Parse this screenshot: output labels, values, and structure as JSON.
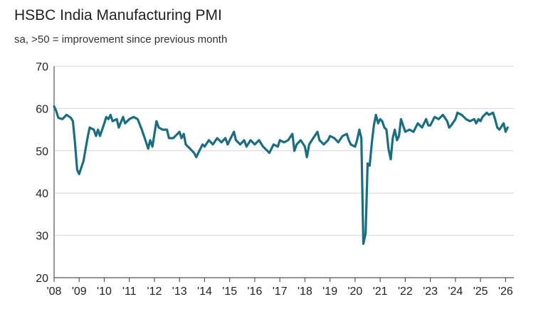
{
  "chart_data": {
    "type": "line",
    "title": "HSBC India Manufacturing PMI",
    "subtitle": "sa, >50 = improvement since previous month",
    "xlabel": "",
    "ylabel": "",
    "ylim": [
      20,
      70
    ],
    "yticks": [
      20,
      30,
      40,
      50,
      60,
      70
    ],
    "xlim": [
      2008.0,
      2026.33
    ],
    "xticks": [
      {
        "value": 2008,
        "label": "'08"
      },
      {
        "value": 2009,
        "label": "'09"
      },
      {
        "value": 2010,
        "label": "'10"
      },
      {
        "value": 2011,
        "label": "'11"
      },
      {
        "value": 2012,
        "label": "'12"
      },
      {
        "value": 2013,
        "label": "'13"
      },
      {
        "value": 2014,
        "label": "'14"
      },
      {
        "value": 2015,
        "label": "'15"
      },
      {
        "value": 2016,
        "label": "'16"
      },
      {
        "value": 2017,
        "label": "'17"
      },
      {
        "value": 2018,
        "label": "'18"
      },
      {
        "value": 2019,
        "label": "'19"
      },
      {
        "value": 2020,
        "label": "'20"
      },
      {
        "value": 2021,
        "label": "'21"
      },
      {
        "value": 2022,
        "label": "'22"
      },
      {
        "value": 2023,
        "label": "'23"
      },
      {
        "value": 2024,
        "label": "'24"
      },
      {
        "value": 2025,
        "label": "'25"
      },
      {
        "value": 2026,
        "label": "'26"
      }
    ],
    "grid": "horizontal",
    "color": "#1a6e80",
    "series": [
      {
        "points": [
          [
            2008.0,
            60.5
          ],
          [
            2008.08,
            59.5
          ],
          [
            2008.17,
            57.8
          ],
          [
            2008.33,
            57.5
          ],
          [
            2008.5,
            58.5
          ],
          [
            2008.67,
            57.8
          ],
          [
            2008.75,
            57.0
          ],
          [
            2008.83,
            52.0
          ],
          [
            2008.92,
            45.5
          ],
          [
            2009.0,
            44.5
          ],
          [
            2009.08,
            46.0
          ],
          [
            2009.17,
            47.5
          ],
          [
            2009.33,
            53.0
          ],
          [
            2009.42,
            55.5
          ],
          [
            2009.58,
            55.0
          ],
          [
            2009.67,
            53.5
          ],
          [
            2009.75,
            55.0
          ],
          [
            2009.83,
            53.5
          ],
          [
            2010.0,
            56.5
          ],
          [
            2010.08,
            58.0
          ],
          [
            2010.17,
            57.5
          ],
          [
            2010.25,
            58.5
          ],
          [
            2010.33,
            57.0
          ],
          [
            2010.5,
            57.5
          ],
          [
            2010.58,
            55.5
          ],
          [
            2010.75,
            58.0
          ],
          [
            2010.83,
            56.5
          ],
          [
            2011.0,
            57.5
          ],
          [
            2011.17,
            58.0
          ],
          [
            2011.33,
            57.5
          ],
          [
            2011.5,
            55.0
          ],
          [
            2011.67,
            52.0
          ],
          [
            2011.75,
            50.5
          ],
          [
            2011.83,
            52.5
          ],
          [
            2011.92,
            51.0
          ],
          [
            2012.0,
            54.0
          ],
          [
            2012.08,
            57.0
          ],
          [
            2012.17,
            55.5
          ],
          [
            2012.33,
            55.0
          ],
          [
            2012.5,
            55.0
          ],
          [
            2012.58,
            53.0
          ],
          [
            2012.75,
            53.0
          ],
          [
            2012.92,
            54.0
          ],
          [
            2013.0,
            54.5
          ],
          [
            2013.08,
            53.0
          ],
          [
            2013.17,
            54.0
          ],
          [
            2013.25,
            51.5
          ],
          [
            2013.42,
            50.5
          ],
          [
            2013.58,
            49.5
          ],
          [
            2013.67,
            48.5
          ],
          [
            2013.75,
            49.5
          ],
          [
            2013.92,
            51.5
          ],
          [
            2014.0,
            51.0
          ],
          [
            2014.17,
            52.5
          ],
          [
            2014.33,
            51.5
          ],
          [
            2014.5,
            53.0
          ],
          [
            2014.67,
            52.0
          ],
          [
            2014.83,
            53.0
          ],
          [
            2014.92,
            51.5
          ],
          [
            2015.0,
            52.5
          ],
          [
            2015.17,
            54.5
          ],
          [
            2015.25,
            52.5
          ],
          [
            2015.42,
            51.5
          ],
          [
            2015.58,
            52.5
          ],
          [
            2015.67,
            51.0
          ],
          [
            2015.83,
            52.5
          ],
          [
            2016.0,
            51.5
          ],
          [
            2016.17,
            52.5
          ],
          [
            2016.33,
            51.0
          ],
          [
            2016.5,
            50.0
          ],
          [
            2016.58,
            49.5
          ],
          [
            2016.75,
            51.5
          ],
          [
            2016.92,
            51.0
          ],
          [
            2017.0,
            52.5
          ],
          [
            2017.17,
            52.0
          ],
          [
            2017.33,
            52.5
          ],
          [
            2017.5,
            54.0
          ],
          [
            2017.58,
            50.0
          ],
          [
            2017.67,
            51.5
          ],
          [
            2017.83,
            52.5
          ],
          [
            2018.0,
            51.0
          ],
          [
            2018.08,
            48.5
          ],
          [
            2018.17,
            51.5
          ],
          [
            2018.33,
            53.0
          ],
          [
            2018.5,
            54.5
          ],
          [
            2018.58,
            52.5
          ],
          [
            2018.75,
            51.5
          ],
          [
            2018.92,
            52.5
          ],
          [
            2019.0,
            53.5
          ],
          [
            2019.17,
            53.0
          ],
          [
            2019.33,
            52.0
          ],
          [
            2019.5,
            53.5
          ],
          [
            2019.67,
            54.0
          ],
          [
            2019.75,
            52.5
          ],
          [
            2019.83,
            51.5
          ],
          [
            2020.0,
            51.0
          ],
          [
            2020.08,
            52.5
          ],
          [
            2020.17,
            55.0
          ],
          [
            2020.25,
            53.0
          ],
          [
            2020.33,
            28.0
          ],
          [
            2020.42,
            30.5
          ],
          [
            2020.5,
            47.0
          ],
          [
            2020.58,
            46.5
          ],
          [
            2020.67,
            52.0
          ],
          [
            2020.75,
            56.0
          ],
          [
            2020.83,
            58.5
          ],
          [
            2020.92,
            56.5
          ],
          [
            2021.0,
            57.5
          ],
          [
            2021.08,
            57.0
          ],
          [
            2021.17,
            55.5
          ],
          [
            2021.25,
            55.0
          ],
          [
            2021.33,
            50.5
          ],
          [
            2021.42,
            48.0
          ],
          [
            2021.5,
            53.0
          ],
          [
            2021.58,
            55.0
          ],
          [
            2021.67,
            52.5
          ],
          [
            2021.75,
            53.5
          ],
          [
            2021.83,
            57.5
          ],
          [
            2022.0,
            54.5
          ],
          [
            2022.17,
            55.0
          ],
          [
            2022.33,
            54.5
          ],
          [
            2022.5,
            56.5
          ],
          [
            2022.67,
            55.5
          ],
          [
            2022.83,
            57.5
          ],
          [
            2022.92,
            56.0
          ],
          [
            2023.0,
            56.0
          ],
          [
            2023.17,
            58.0
          ],
          [
            2023.33,
            57.5
          ],
          [
            2023.5,
            58.5
          ],
          [
            2023.67,
            57.0
          ],
          [
            2023.75,
            55.5
          ],
          [
            2023.83,
            56.0
          ],
          [
            2024.0,
            57.5
          ],
          [
            2024.08,
            59.0
          ],
          [
            2024.25,
            58.5
          ],
          [
            2024.42,
            57.5
          ],
          [
            2024.58,
            57.0
          ],
          [
            2024.75,
            57.5
          ],
          [
            2024.83,
            56.5
          ],
          [
            2024.92,
            57.5
          ],
          [
            2025.0,
            57.0
          ],
          [
            2025.08,
            58.0
          ],
          [
            2025.25,
            59.0
          ],
          [
            2025.33,
            58.5
          ],
          [
            2025.5,
            59.0
          ],
          [
            2025.58,
            57.5
          ],
          [
            2025.67,
            55.5
          ],
          [
            2025.75,
            55.0
          ],
          [
            2025.92,
            56.5
          ],
          [
            2026.0,
            54.5
          ],
          [
            2026.08,
            55.5
          ]
        ]
      }
    ]
  }
}
